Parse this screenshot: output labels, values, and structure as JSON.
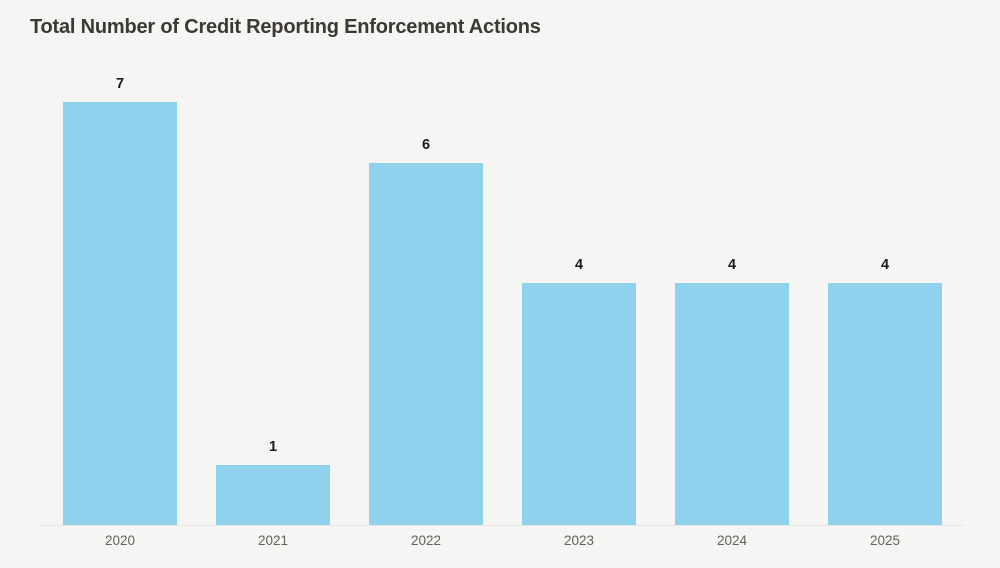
{
  "page": {
    "background": "#f5f5f3"
  },
  "chart_data": {
    "type": "bar",
    "title": "Total Number of Credit Reporting Enforcement Actions",
    "categories": [
      "2020",
      "2021",
      "2022",
      "2023",
      "2024",
      "2025"
    ],
    "values": [
      7,
      1,
      6,
      4,
      4,
      4
    ],
    "xlabel": "",
    "ylabel": "",
    "ylim": [
      0,
      7
    ],
    "grid": false,
    "legend": "none",
    "value_labels_shown": true,
    "bar_color": "#8ed2ed",
    "value_label_color": "#1a1a1a",
    "tick_label_color": "#63615c",
    "title_color": "#3b3835",
    "axis_line_color": "#e7e5e1"
  }
}
